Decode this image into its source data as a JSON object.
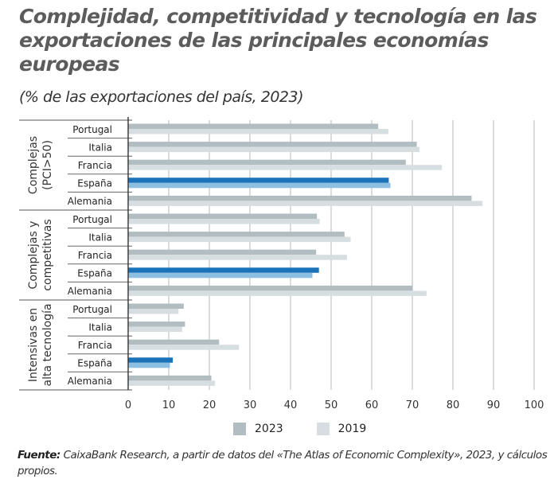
{
  "title": "Complejidad, competitividad y tecnología en las exportaciones de las principales economías europeas",
  "subtitle": "(% de las exportaciones del país, 2023)",
  "source_label": "Fuente:",
  "source_text": "CaixaBank Research, a partir de datos del «The Atlas of Economic Complexity», 2023, y cálculos propios.",
  "colors": {
    "gray_2023": "#b2bdc2",
    "gray_2019": "#d7dee1",
    "spain_2023": "#1a72b8",
    "spain_2019": "#8dbfe2",
    "grid": "#c8c8c8",
    "axis": "#333333"
  },
  "chart_data": {
    "type": "bar",
    "orientation": "horizontal",
    "title": "Complejidad, competitividad y tecnología en las exportaciones de las principales economías europeas",
    "subtitle": "(% de las exportaciones del país, 2023)",
    "xlabel": "",
    "ylabel": "",
    "xlim": [
      0,
      100
    ],
    "xticks": [
      0,
      10,
      20,
      30,
      40,
      50,
      60,
      70,
      80,
      90,
      100
    ],
    "grid": true,
    "legend": {
      "placement": "bottom",
      "entries": [
        "2023",
        "2019"
      ]
    },
    "highlight_category": "España",
    "groups": [
      {
        "label": "Complejas (PCI>50)",
        "label_lines": [
          "Complejas",
          "(PCI>50)"
        ],
        "categories": [
          "Portugal",
          "Italia",
          "Francia",
          "España",
          "Alemania"
        ],
        "series": [
          {
            "name": "2023",
            "values": [
              61.6,
              71.1,
              68.4,
              64.2,
              84.6
            ]
          },
          {
            "name": "2019",
            "values": [
              64.1,
              71.8,
              77.3,
              64.6,
              87.3
            ]
          }
        ]
      },
      {
        "label": "Complejas y competitivas",
        "label_lines": [
          "Complejas y",
          "competitivas"
        ],
        "categories": [
          "Portugal",
          "Italia",
          "Francia",
          "España",
          "Alemania"
        ],
        "series": [
          {
            "name": "2023",
            "values": [
              46.5,
              53.3,
              46.3,
              47.0,
              70.1
            ]
          },
          {
            "name": "2019",
            "values": [
              47.2,
              54.8,
              53.9,
              45.4,
              73.5
            ]
          }
        ]
      },
      {
        "label": "Intensivas en alta tecnología",
        "label_lines": [
          "Intensivas en",
          "alta tecnología"
        ],
        "categories": [
          "Portugal",
          "Italia",
          "Francia",
          "España",
          "Alemania"
        ],
        "series": [
          {
            "name": "2023",
            "values": [
              13.7,
              14.0,
              22.4,
              11.0,
              20.5
            ]
          },
          {
            "name": "2019",
            "values": [
              12.4,
              13.3,
              27.3,
              10.3,
              21.4
            ]
          }
        ]
      }
    ]
  }
}
